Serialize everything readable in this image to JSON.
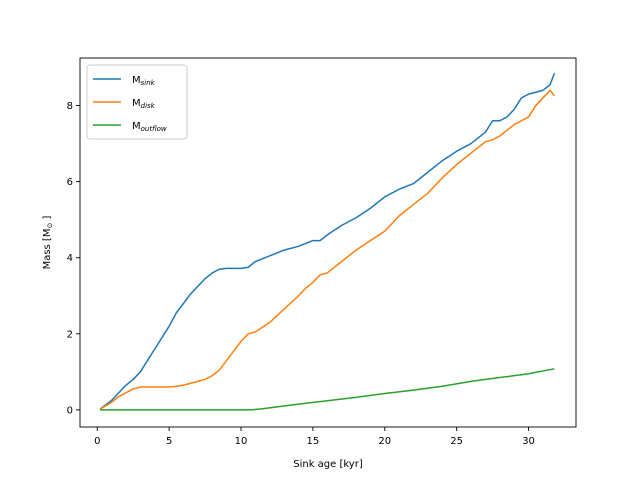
{
  "chart_data": {
    "type": "line",
    "title": "",
    "xlabel": "Sink age [kyr]",
    "ylabel": "Mass [M",
    "ylabel_sub": "⊙",
    "ylabel_end": " ]",
    "xlim": [
      -1.2,
      33.3
    ],
    "ylim": [
      -0.45,
      9.25
    ],
    "xticks": [
      0,
      5,
      10,
      15,
      20,
      25,
      30
    ],
    "yticks": [
      0,
      2,
      4,
      6,
      8
    ],
    "grid": false,
    "legend_position": "upper-left",
    "series": [
      {
        "name": "M",
        "name_sub": "sink",
        "color": "#1f77b4",
        "points": [
          [
            0.2,
            0.02
          ],
          [
            1.0,
            0.25
          ],
          [
            1.5,
            0.45
          ],
          [
            2.0,
            0.65
          ],
          [
            2.5,
            0.8
          ],
          [
            3.0,
            1.0
          ],
          [
            3.5,
            1.3
          ],
          [
            4.0,
            1.6
          ],
          [
            4.5,
            1.9
          ],
          [
            5.0,
            2.2
          ],
          [
            5.5,
            2.55
          ],
          [
            6.0,
            2.8
          ],
          [
            6.5,
            3.05
          ],
          [
            7.0,
            3.25
          ],
          [
            7.5,
            3.45
          ],
          [
            8.0,
            3.6
          ],
          [
            8.5,
            3.7
          ],
          [
            9.0,
            3.72
          ],
          [
            9.5,
            3.72
          ],
          [
            10.0,
            3.72
          ],
          [
            10.5,
            3.75
          ],
          [
            11.0,
            3.9
          ],
          [
            12.0,
            4.05
          ],
          [
            13.0,
            4.2
          ],
          [
            14.0,
            4.3
          ],
          [
            15.0,
            4.45
          ],
          [
            15.5,
            4.45
          ],
          [
            16.0,
            4.6
          ],
          [
            17.0,
            4.85
          ],
          [
            18.0,
            5.05
          ],
          [
            19.0,
            5.3
          ],
          [
            20.0,
            5.6
          ],
          [
            21.0,
            5.8
          ],
          [
            22.0,
            5.95
          ],
          [
            23.0,
            6.25
          ],
          [
            24.0,
            6.55
          ],
          [
            25.0,
            6.8
          ],
          [
            26.0,
            7.0
          ],
          [
            27.0,
            7.3
          ],
          [
            27.5,
            7.6
          ],
          [
            28.0,
            7.6
          ],
          [
            28.5,
            7.7
          ],
          [
            29.0,
            7.9
          ],
          [
            29.5,
            8.2
          ],
          [
            30.0,
            8.3
          ],
          [
            31.0,
            8.4
          ],
          [
            31.5,
            8.55
          ],
          [
            31.8,
            8.85
          ]
        ]
      },
      {
        "name": "M",
        "name_sub": "disk",
        "color": "#ff7f0e",
        "points": [
          [
            0.2,
            0.02
          ],
          [
            1.0,
            0.2
          ],
          [
            1.5,
            0.35
          ],
          [
            2.0,
            0.45
          ],
          [
            2.5,
            0.55
          ],
          [
            3.0,
            0.6
          ],
          [
            4.0,
            0.6
          ],
          [
            5.0,
            0.6
          ],
          [
            5.5,
            0.62
          ],
          [
            6.0,
            0.65
          ],
          [
            7.0,
            0.75
          ],
          [
            7.5,
            0.8
          ],
          [
            8.0,
            0.9
          ],
          [
            8.5,
            1.05
          ],
          [
            9.0,
            1.3
          ],
          [
            9.5,
            1.55
          ],
          [
            10.0,
            1.8
          ],
          [
            10.5,
            2.0
          ],
          [
            11.0,
            2.05
          ],
          [
            12.0,
            2.3
          ],
          [
            13.0,
            2.65
          ],
          [
            14.0,
            3.0
          ],
          [
            14.5,
            3.2
          ],
          [
            15.0,
            3.35
          ],
          [
            15.5,
            3.55
          ],
          [
            16.0,
            3.6
          ],
          [
            17.0,
            3.9
          ],
          [
            18.0,
            4.2
          ],
          [
            19.0,
            4.45
          ],
          [
            20.0,
            4.7
          ],
          [
            20.5,
            4.9
          ],
          [
            21.0,
            5.1
          ],
          [
            22.0,
            5.4
          ],
          [
            23.0,
            5.7
          ],
          [
            24.0,
            6.1
          ],
          [
            25.0,
            6.45
          ],
          [
            26.0,
            6.75
          ],
          [
            27.0,
            7.05
          ],
          [
            27.5,
            7.1
          ],
          [
            28.0,
            7.2
          ],
          [
            29.0,
            7.5
          ],
          [
            29.5,
            7.6
          ],
          [
            30.0,
            7.7
          ],
          [
            30.5,
            8.0
          ],
          [
            31.0,
            8.2
          ],
          [
            31.5,
            8.4
          ],
          [
            31.8,
            8.25
          ]
        ]
      },
      {
        "name": "M",
        "name_sub": "outflow",
        "color": "#2ca02c",
        "points": [
          [
            0.2,
            0.0
          ],
          [
            5.0,
            0.0
          ],
          [
            10.0,
            0.0
          ],
          [
            10.7,
            0.0
          ],
          [
            11.5,
            0.03
          ],
          [
            12.5,
            0.08
          ],
          [
            14.0,
            0.15
          ],
          [
            16.0,
            0.24
          ],
          [
            18.0,
            0.33
          ],
          [
            20.0,
            0.43
          ],
          [
            22.0,
            0.52
          ],
          [
            24.0,
            0.62
          ],
          [
            26.0,
            0.75
          ],
          [
            28.0,
            0.85
          ],
          [
            30.0,
            0.95
          ],
          [
            31.8,
            1.08
          ]
        ]
      }
    ]
  }
}
